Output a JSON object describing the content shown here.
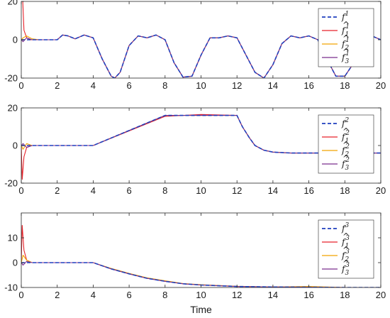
{
  "chart_data": [
    {
      "type": "line",
      "xlim": [
        0,
        20
      ],
      "ylim": [
        -20,
        20
      ],
      "xticks": [
        0,
        2,
        4,
        6,
        8,
        10,
        12,
        14,
        16,
        18,
        20
      ],
      "yticks": [
        -20,
        0,
        20
      ],
      "xlabel": "",
      "grid": false,
      "legend_position": "top-right",
      "series": [
        {
          "name": "f^1",
          "color": "#1f3fbf",
          "style": "dashed",
          "x": [
            0,
            2,
            2.3,
            2.6,
            3,
            3.5,
            4,
            4.5,
            5,
            5.2,
            5.5,
            6,
            6.5,
            7,
            7.5,
            8,
            8.5,
            9,
            9.5,
            10,
            10.5,
            11,
            11.5,
            12,
            12.5,
            13,
            13.5,
            14,
            14.5,
            15,
            15.5,
            16,
            16.5,
            17,
            17.5,
            18,
            18.5,
            19,
            19.5,
            20
          ],
          "y": [
            0,
            0,
            2.5,
            2,
            0.5,
            2.5,
            1,
            -10,
            -19,
            -20,
            -17,
            -3,
            2,
            1,
            2.5,
            0,
            -12,
            -19.5,
            -19,
            -8,
            1,
            1,
            2,
            1,
            -8,
            -17,
            -20,
            -13,
            -2,
            2,
            1,
            2,
            0,
            -10,
            -19,
            -19,
            -12,
            0,
            2,
            0
          ]
        },
        {
          "name": "f̂_1^1",
          "color": "#e8222a",
          "style": "solid",
          "x": [
            0,
            0.05,
            0.15,
            0.3,
            0.5,
            1,
            2,
            2.3,
            2.6,
            3,
            3.5,
            4,
            4.5,
            5,
            5.2,
            5.5,
            6,
            6.5,
            7,
            7.5,
            8,
            8.5,
            9,
            9.5,
            10,
            10.5,
            11,
            11.5,
            12,
            12.5,
            13,
            13.5,
            14,
            14.5,
            15,
            15.5,
            16,
            16.5,
            17,
            17.5,
            18,
            18.5,
            19,
            19.5,
            20
          ],
          "y": [
            20,
            27,
            5,
            1,
            0,
            0,
            0,
            2.5,
            2,
            0.5,
            2.5,
            1,
            -10,
            -19,
            -20,
            -17,
            -3,
            2,
            1,
            2.5,
            0,
            -12,
            -19.5,
            -19,
            -8,
            1,
            1,
            2,
            1,
            -8,
            -17,
            -20,
            -13,
            -2,
            2,
            1,
            2,
            0,
            -10,
            -19,
            -19,
            -12,
            0,
            2,
            0
          ]
        },
        {
          "name": "f̂_2^1",
          "color": "#f2a500",
          "style": "solid",
          "x": [
            0,
            0.1,
            0.3,
            0.6,
            1,
            2,
            2.3,
            2.6,
            3,
            3.5,
            4,
            4.5,
            5,
            5.2,
            5.5,
            6,
            6.5,
            7,
            7.5,
            8,
            8.5,
            9,
            9.5,
            10,
            10.5,
            11,
            11.5,
            12,
            12.5,
            13,
            13.5,
            14,
            14.5,
            15,
            15.5,
            16,
            16.5,
            17,
            17.5,
            18,
            18.5,
            19,
            19.5,
            20
          ],
          "y": [
            0,
            1,
            2,
            0.5,
            0,
            0,
            2.5,
            2,
            0.5,
            2.5,
            1,
            -10,
            -19,
            -20,
            -17,
            -3,
            2,
            1,
            2.5,
            0,
            -12,
            -19.5,
            -19,
            -8,
            1,
            1,
            2,
            1,
            -8,
            -17,
            -20,
            -13,
            -2,
            2,
            1,
            2,
            0,
            -10,
            -19,
            -19,
            -12,
            0,
            2,
            0
          ]
        },
        {
          "name": "f̂_3^1",
          "color": "#7b2d8e",
          "style": "solid",
          "x": [
            0,
            0.1,
            0.3,
            0.6,
            1,
            2,
            2.3,
            2.6,
            3,
            3.5,
            4,
            4.5,
            5,
            5.2,
            5.5,
            6,
            6.5,
            7,
            7.5,
            8,
            8.5,
            9,
            9.5,
            10,
            10.5,
            11,
            11.5,
            12,
            12.5,
            13,
            13.5,
            14,
            14.5,
            15,
            15.5,
            16,
            16.5,
            17,
            17.5,
            18,
            18.5,
            19,
            19.5,
            20
          ],
          "y": [
            0,
            -1,
            1,
            0,
            0,
            0,
            2.5,
            2,
            0.5,
            2.5,
            1,
            -10,
            -19,
            -20,
            -17,
            -3,
            2,
            1,
            2.5,
            0,
            -12,
            -19.5,
            -19,
            -8,
            1,
            1,
            2,
            1,
            -8,
            -17,
            -20,
            -13,
            -2,
            2,
            1,
            2,
            0,
            -10,
            -19,
            -19,
            -12,
            0,
            2,
            0
          ]
        }
      ],
      "legend": [
        {
          "base": "f",
          "sub": "",
          "sup": "1",
          "hat": false
        },
        {
          "base": "f",
          "sub": "1",
          "sup": "1",
          "hat": true
        },
        {
          "base": "f",
          "sub": "2",
          "sup": "1",
          "hat": true
        },
        {
          "base": "f",
          "sub": "3",
          "sup": "1",
          "hat": true
        }
      ]
    },
    {
      "type": "line",
      "xlim": [
        0,
        20
      ],
      "ylim": [
        -20,
        20
      ],
      "xticks": [
        0,
        2,
        4,
        6,
        8,
        10,
        12,
        14,
        16,
        18,
        20
      ],
      "yticks": [
        -20,
        0,
        20
      ],
      "xlabel": "",
      "grid": false,
      "legend_position": "right",
      "series": [
        {
          "name": "f^2",
          "color": "#1f3fbf",
          "style": "dashed",
          "x": [
            0,
            4,
            8,
            10,
            12,
            12.3,
            12.7,
            13,
            13.5,
            14,
            15,
            16,
            18,
            20
          ],
          "y": [
            0,
            0,
            16,
            16,
            16,
            10,
            4,
            0,
            -2.5,
            -3.5,
            -4,
            -4,
            -4,
            -4
          ]
        },
        {
          "name": "f̂_1^2",
          "color": "#e8222a",
          "style": "solid",
          "x": [
            0,
            0.05,
            0.15,
            0.3,
            0.6,
            1,
            4,
            8,
            10,
            12,
            12.3,
            12.7,
            13,
            13.5,
            14,
            15,
            16,
            18,
            20
          ],
          "y": [
            0,
            -18,
            -6,
            -1,
            0,
            0,
            0,
            15.5,
            16.5,
            16,
            10,
            4,
            0,
            -2.5,
            -3.5,
            -4,
            -4,
            -4,
            -4
          ]
        },
        {
          "name": "f̂_2^2",
          "color": "#f2a500",
          "style": "solid",
          "x": [
            0,
            0.1,
            0.3,
            0.6,
            1,
            4,
            8,
            10,
            12,
            12.3,
            12.7,
            13,
            13.5,
            14,
            15,
            16,
            18,
            20
          ],
          "y": [
            0,
            -2,
            1,
            0,
            0,
            0,
            16,
            16,
            16,
            10,
            4,
            0,
            -2.5,
            -3.5,
            -4,
            -4,
            -4,
            -4
          ]
        },
        {
          "name": "f̂_3^2",
          "color": "#7b2d8e",
          "style": "solid",
          "x": [
            0,
            0.1,
            0.3,
            0.6,
            1,
            4,
            8,
            10,
            12,
            12.3,
            12.7,
            13,
            13.5,
            14,
            15,
            16,
            18,
            20
          ],
          "y": [
            0,
            1,
            -1,
            0,
            0,
            0,
            16,
            16,
            16,
            10,
            4,
            0,
            -2.5,
            -3.5,
            -4,
            -4,
            -4,
            -4
          ]
        }
      ],
      "legend": [
        {
          "base": "f",
          "sub": "",
          "sup": "2",
          "hat": false
        },
        {
          "base": "f",
          "sub": "1",
          "sup": "2",
          "hat": true
        },
        {
          "base": "f",
          "sub": "2",
          "sup": "2",
          "hat": true
        },
        {
          "base": "f",
          "sub": "3",
          "sup": "2",
          "hat": true
        }
      ]
    },
    {
      "type": "line",
      "xlim": [
        0,
        20
      ],
      "ylim": [
        -10,
        20
      ],
      "xticks": [
        0,
        2,
        4,
        6,
        8,
        10,
        12,
        14,
        16,
        18,
        20
      ],
      "yticks": [
        -10,
        0,
        10
      ],
      "xlabel": "Time",
      "grid": false,
      "legend_position": "top-right",
      "series": [
        {
          "name": "f^3",
          "color": "#1f3fbf",
          "style": "dashed",
          "x": [
            0,
            4,
            5,
            6,
            7,
            8,
            9,
            10,
            12,
            14,
            16,
            18,
            20
          ],
          "y": [
            0,
            0,
            -2.5,
            -4.5,
            -6.3,
            -7.5,
            -8.5,
            -9,
            -9.6,
            -9.8,
            -9.9,
            -10,
            -10
          ]
        },
        {
          "name": "f̂_1^3",
          "color": "#e8222a",
          "style": "solid",
          "x": [
            0,
            0.05,
            0.15,
            0.3,
            0.6,
            1,
            4,
            5,
            6,
            7,
            8,
            9,
            10,
            12,
            14,
            16,
            18,
            20
          ],
          "y": [
            0,
            15,
            5,
            1,
            0,
            0,
            0,
            -2.5,
            -4.5,
            -6.3,
            -7.5,
            -8.5,
            -9,
            -9.6,
            -9.8,
            -9.9,
            -10,
            -10
          ]
        },
        {
          "name": "f̂_2^3",
          "color": "#f2a500",
          "style": "solid",
          "x": [
            0,
            0.1,
            0.3,
            0.6,
            1,
            4,
            5,
            6,
            7,
            8,
            9,
            10,
            12,
            14,
            16,
            18,
            20
          ],
          "y": [
            0,
            3,
            1,
            0,
            0,
            0,
            -2.3,
            -4.3,
            -6.1,
            -7.3,
            -8.4,
            -8.9,
            -9.5,
            -9.8,
            -9.6,
            -10,
            -10
          ]
        },
        {
          "name": "f̂_3^3",
          "color": "#7b2d8e",
          "style": "solid",
          "x": [
            0,
            0.1,
            0.3,
            0.6,
            1,
            4,
            5,
            6,
            7,
            8,
            9,
            10,
            12,
            14,
            16,
            18,
            20
          ],
          "y": [
            0,
            -1,
            0.5,
            0,
            0,
            0,
            -2.5,
            -4.5,
            -6.3,
            -7.5,
            -8.5,
            -9,
            -9.6,
            -9.8,
            -9.9,
            -10,
            -10
          ]
        }
      ],
      "legend": [
        {
          "base": "f",
          "sub": "",
          "sup": "3",
          "hat": false
        },
        {
          "base": "f",
          "sub": "1",
          "sup": "3",
          "hat": true
        },
        {
          "base": "f",
          "sub": "2",
          "sup": "3",
          "hat": true
        },
        {
          "base": "f",
          "sub": "3",
          "sup": "3",
          "hat": true
        }
      ]
    }
  ]
}
